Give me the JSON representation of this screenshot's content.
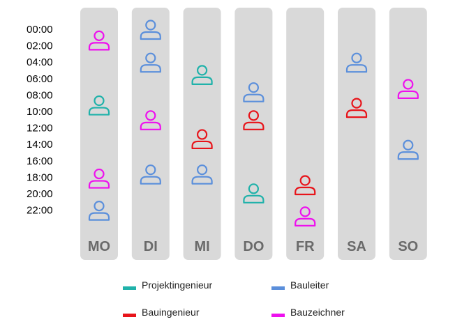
{
  "chart_data": {
    "type": "scatter",
    "title": "",
    "xlabel": "",
    "ylabel": "",
    "time_ticks": [
      "00:00",
      "02:00",
      "04:00",
      "06:00",
      "08:00",
      "10:00",
      "12:00",
      "14:00",
      "16:00",
      "18:00",
      "20:00",
      "22:00"
    ],
    "ylim": [
      0,
      24
    ],
    "categories": [
      "MO",
      "DI",
      "MI",
      "DO",
      "FR",
      "SA",
      "SO"
    ],
    "legend_position": "bottom",
    "series": [
      {
        "name": "Projektingenieur",
        "color": "#20b2aa",
        "points": [
          {
            "day": "MO",
            "hour": 9.2
          },
          {
            "day": "MI",
            "hour": 5.5
          },
          {
            "day": "DO",
            "hour": 19.9
          }
        ]
      },
      {
        "name": "Bauleiter",
        "color": "#5b8fdb",
        "points": [
          {
            "day": "MO",
            "hour": 22.0
          },
          {
            "day": "DI",
            "hour": 0.0
          },
          {
            "day": "DI",
            "hour": 4.0
          },
          {
            "day": "DI",
            "hour": 17.6
          },
          {
            "day": "MI",
            "hour": 17.6
          },
          {
            "day": "DO",
            "hour": 7.6
          },
          {
            "day": "SA",
            "hour": 4.0
          },
          {
            "day": "SO",
            "hour": 14.6
          }
        ]
      },
      {
        "name": "Bauingenieur",
        "color": "#e8141a",
        "points": [
          {
            "day": "MI",
            "hour": 13.3
          },
          {
            "day": "DO",
            "hour": 11.0
          },
          {
            "day": "FR",
            "hour": 18.9
          },
          {
            "day": "SA",
            "hour": 9.5
          }
        ]
      },
      {
        "name": "Bauzeichner",
        "color": "#ee10ee",
        "points": [
          {
            "day": "MO",
            "hour": 1.3
          },
          {
            "day": "MO",
            "hour": 18.1
          },
          {
            "day": "DI",
            "hour": 11.0
          },
          {
            "day": "FR",
            "hour": 22.7
          },
          {
            "day": "SO",
            "hour": 7.2
          }
        ]
      }
    ]
  }
}
